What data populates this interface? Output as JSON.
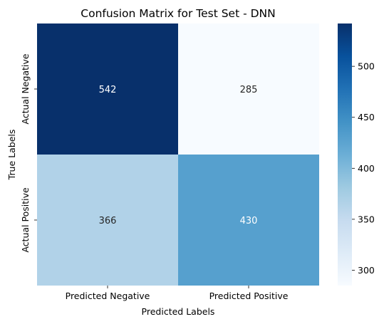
{
  "chart_data": {
    "type": "heatmap",
    "title": "Confusion Matrix for Test Set - DNN",
    "xlabel": "Predicted Labels",
    "ylabel": "True Labels",
    "x_categories": [
      "Predicted Negative",
      "Predicted Positive"
    ],
    "y_categories": [
      "Actual Negative",
      "Actual Positive"
    ],
    "values": [
      [
        542,
        285
      ],
      [
        366,
        430
      ]
    ],
    "colormap": "Blues",
    "color_range": [
      285,
      542
    ],
    "colorbar_ticks": [
      300,
      350,
      400,
      450,
      500
    ],
    "colors": {
      "cell_542": "#08306b",
      "cell_285": "#f7fbff",
      "cell_366": "#b4d3e9",
      "cell_430": "#4fa3d1",
      "text_dark": "#262626",
      "text_light": "#ffffff"
    }
  }
}
